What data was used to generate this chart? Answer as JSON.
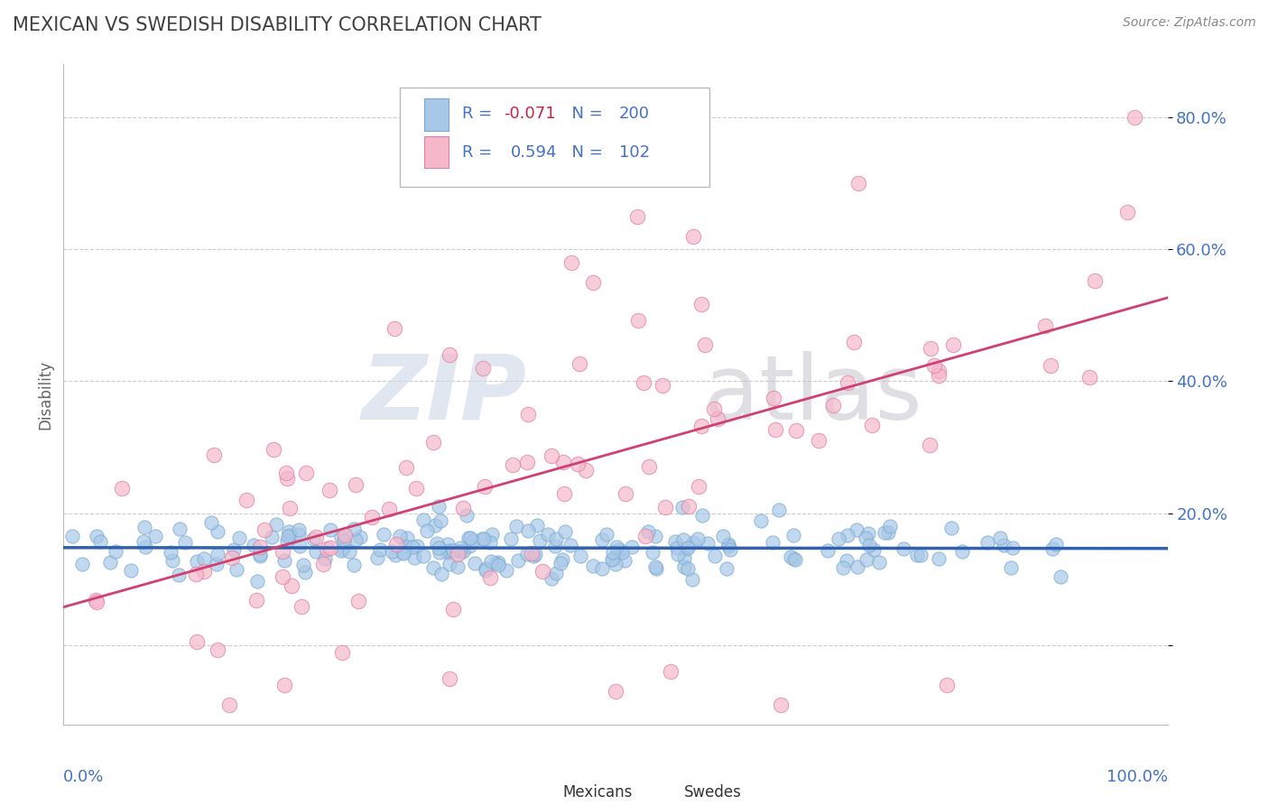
{
  "title": "MEXICAN VS SWEDISH DISABILITY CORRELATION CHART",
  "source_text": "Source: ZipAtlas.com",
  "ylabel": "Disability",
  "blue_scatter_color": "#a8c8e8",
  "blue_edge_color": "#7aaad0",
  "pink_scatter_color": "#f5b8cb",
  "pink_edge_color": "#e080a0",
  "blue_line_color": "#3060b0",
  "pink_line_color": "#d04070",
  "title_color": "#404040",
  "axis_label_color": "#4472c4",
  "legend_r_color": "#4472c4",
  "grid_color": "#cccccc",
  "background_color": "#ffffff",
  "watermark_zip_color": "#ccd8e8",
  "watermark_atlas_color": "#c0c0c8"
}
